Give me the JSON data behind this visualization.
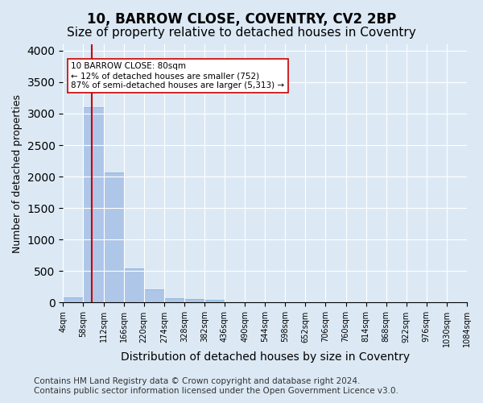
{
  "title1": "10, BARROW CLOSE, COVENTRY, CV2 2BP",
  "title2": "Size of property relative to detached houses in Coventry",
  "xlabel": "Distribution of detached houses by size in Coventry",
  "ylabel": "Number of detached properties",
  "footnote": "Contains HM Land Registry data © Crown copyright and database right 2024.\nContains public sector information licensed under the Open Government Licence v3.0.",
  "bin_labels": [
    "4sqm",
    "58sqm",
    "112sqm",
    "166sqm",
    "220sqm",
    "274sqm",
    "328sqm",
    "382sqm",
    "436sqm",
    "490sqm",
    "544sqm",
    "598sqm",
    "652sqm",
    "706sqm",
    "760sqm",
    "814sqm",
    "868sqm",
    "922sqm",
    "976sqm",
    "1030sqm",
    "1084sqm"
  ],
  "bar_values": [
    80,
    3100,
    2060,
    540,
    210,
    75,
    60,
    50,
    0,
    0,
    0,
    0,
    0,
    0,
    0,
    0,
    0,
    0,
    0,
    0
  ],
  "bar_color": "#aec6e8",
  "bar_edge_color": "#7aaecf",
  "vline_x": 1.4,
  "vline_color": "#cc0000",
  "annotation_text": "10 BARROW CLOSE: 80sqm\n← 12% of detached houses are smaller (752)\n87% of semi-detached houses are larger (5,313) →",
  "annotation_box_color": "#ffffff",
  "annotation_box_edge": "#cc0000",
  "ylim": [
    0,
    4100
  ],
  "background_color": "#dce9f5",
  "plot_bg_color": "#dce9f5",
  "grid_color": "#ffffff",
  "title1_fontsize": 12,
  "title2_fontsize": 11,
  "xlabel_fontsize": 10,
  "ylabel_fontsize": 9,
  "footnote_fontsize": 7.5
}
